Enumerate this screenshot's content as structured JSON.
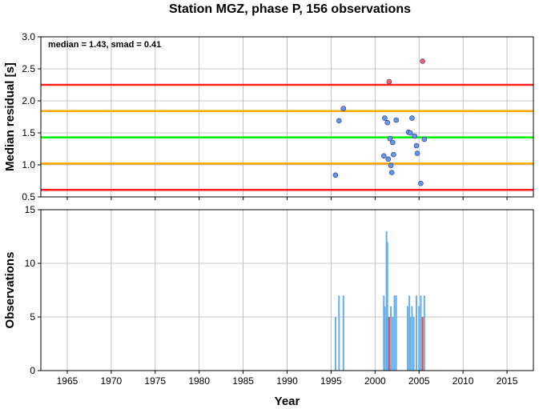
{
  "chart_data": [
    {
      "type": "scatter",
      "title": "Station MGZ, phase P, 156 observations",
      "ylabel": "Median residual [s]",
      "annotation": "median = 1.43, smad = 0.41",
      "xlim": [
        1962,
        2018
      ],
      "ylim": [
        0.5,
        3.0
      ],
      "x_ticks": [
        1965,
        1970,
        1975,
        1980,
        1985,
        1990,
        1995,
        2000,
        2005,
        2010,
        2015
      ],
      "y_ticks": [
        "0.5",
        "1.0",
        "1.5",
        "2.0",
        "2.5",
        "3.0"
      ],
      "grid": true,
      "reference_lines": [
        {
          "y": 2.25,
          "color": "#ff2020"
        },
        {
          "y": 1.84,
          "color": "#ffa500"
        },
        {
          "y": 1.43,
          "color": "#00ee00"
        },
        {
          "y": 1.02,
          "color": "#ffa500"
        },
        {
          "y": 0.61,
          "color": "#ff2020"
        }
      ],
      "series": [
        {
          "color": "#6495ed",
          "points": [
            [
              1995.5,
              0.84
            ],
            [
              1995.9,
              1.69
            ],
            [
              1996.4,
              1.88
            ],
            [
              2001.1,
              1.73
            ],
            [
              2001.0,
              1.14
            ],
            [
              2001.4,
              1.66
            ],
            [
              2001.5,
              1.09
            ],
            [
              2001.7,
              1.41
            ],
            [
              2001.8,
              0.99
            ],
            [
              2001.9,
              0.88
            ],
            [
              2002.0,
              1.35
            ],
            [
              2002.1,
              1.16
            ],
            [
              2002.4,
              1.7
            ],
            [
              2003.8,
              1.51
            ],
            [
              2004.0,
              1.5
            ],
            [
              2004.2,
              1.73
            ],
            [
              2004.5,
              1.45
            ],
            [
              2004.7,
              1.3
            ],
            [
              2004.8,
              1.18
            ],
            [
              2005.2,
              0.71
            ],
            [
              2005.6,
              1.4
            ]
          ]
        },
        {
          "color": "#ff6060",
          "points": [
            [
              2001.6,
              2.3
            ],
            [
              2005.4,
              2.62
            ]
          ]
        }
      ]
    },
    {
      "type": "bar",
      "xlabel": "Year",
      "ylabel": "Observations",
      "xlim": [
        1962,
        2018
      ],
      "ylim": [
        0,
        15
      ],
      "x_ticks": [
        1965,
        1970,
        1975,
        1980,
        1985,
        1990,
        1995,
        2000,
        2005,
        2010,
        2015
      ],
      "y_ticks": [
        "0",
        "5",
        "10",
        "15"
      ],
      "grid": true,
      "series": [
        {
          "color": "#6aaee6",
          "bars": [
            [
              1995.5,
              5
            ],
            [
              1995.9,
              7
            ],
            [
              1996.4,
              7
            ],
            [
              2001.0,
              7
            ],
            [
              2001.1,
              6
            ],
            [
              2001.3,
              13
            ],
            [
              2001.4,
              12
            ],
            [
              2001.5,
              5
            ],
            [
              2001.8,
              6
            ],
            [
              2002.0,
              5
            ],
            [
              2002.2,
              7
            ],
            [
              2002.4,
              7
            ],
            [
              2003.7,
              6
            ],
            [
              2003.9,
              7
            ],
            [
              2004.0,
              5
            ],
            [
              2004.2,
              6
            ],
            [
              2004.4,
              5
            ],
            [
              2004.7,
              7
            ],
            [
              2005.0,
              6
            ],
            [
              2005.2,
              7
            ],
            [
              2005.6,
              7
            ]
          ]
        },
        {
          "color": "#e8474b",
          "bars": [
            [
              2001.6,
              5
            ],
            [
              2005.4,
              5
            ]
          ]
        }
      ]
    }
  ]
}
